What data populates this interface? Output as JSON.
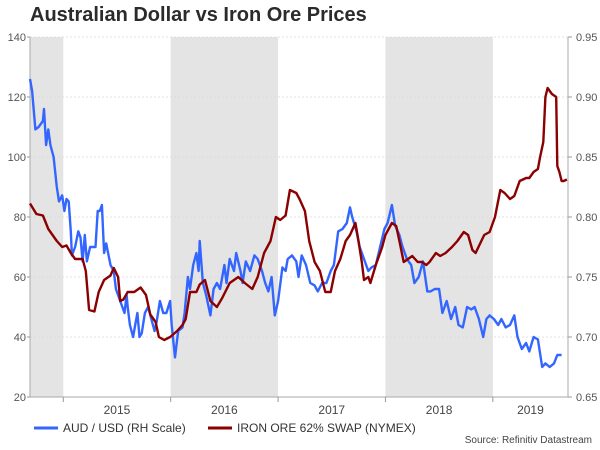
{
  "chart_data": {
    "type": "line",
    "title": "Australian Dollar vs Iron Ore Prices",
    "source": "Source: Refinitiv Datastream",
    "x_range": [
      2014.69,
      2019.7
    ],
    "x_ticks": [
      "2015",
      "2016",
      "2017",
      "2018",
      "2019"
    ],
    "shaded_years": [
      "2014",
      "2016",
      "2018"
    ],
    "left_axis": {
      "range": [
        20,
        140
      ],
      "ticks": [
        "20",
        "40",
        "60",
        "80",
        "100",
        "120",
        "140"
      ]
    },
    "right_axis": {
      "range": [
        0.65,
        0.95
      ],
      "ticks": [
        "0.65",
        "0.70",
        "0.75",
        "0.80",
        "0.85",
        "0.90",
        "0.95"
      ]
    },
    "grid": true,
    "legend_position": "bottom",
    "series": [
      {
        "name": "AUD / USD (RH Scale)",
        "axis": "right",
        "color": "#3366ff",
        "points": [
          [
            2014.69,
            0.915
          ],
          [
            2014.71,
            0.905
          ],
          [
            2014.74,
            0.873
          ],
          [
            2014.77,
            0.875
          ],
          [
            2014.81,
            0.88
          ],
          [
            2014.82,
            0.89
          ],
          [
            2014.84,
            0.86
          ],
          [
            2014.86,
            0.873
          ],
          [
            2014.88,
            0.86
          ],
          [
            2014.91,
            0.85
          ],
          [
            2014.94,
            0.825
          ],
          [
            2014.96,
            0.813
          ],
          [
            2014.99,
            0.818
          ],
          [
            2015.01,
            0.805
          ],
          [
            2015.03,
            0.815
          ],
          [
            2015.05,
            0.813
          ],
          [
            2015.07,
            0.788
          ],
          [
            2015.08,
            0.768
          ],
          [
            2015.11,
            0.775
          ],
          [
            2015.14,
            0.788
          ],
          [
            2015.16,
            0.783
          ],
          [
            2015.18,
            0.763
          ],
          [
            2015.2,
            0.785
          ],
          [
            2015.22,
            0.763
          ],
          [
            2015.25,
            0.775
          ],
          [
            2015.3,
            0.775
          ],
          [
            2015.32,
            0.805
          ],
          [
            2015.34,
            0.805
          ],
          [
            2015.36,
            0.81
          ],
          [
            2015.38,
            0.77
          ],
          [
            2015.4,
            0.778
          ],
          [
            2015.44,
            0.76
          ],
          [
            2015.47,
            0.755
          ],
          [
            2015.49,
            0.74
          ],
          [
            2015.53,
            0.73
          ],
          [
            2015.57,
            0.72
          ],
          [
            2015.59,
            0.735
          ],
          [
            2015.6,
            0.725
          ],
          [
            2015.62,
            0.71
          ],
          [
            2015.65,
            0.7
          ],
          [
            2015.67,
            0.71
          ],
          [
            2015.69,
            0.72
          ],
          [
            2015.71,
            0.7
          ],
          [
            2015.73,
            0.703
          ],
          [
            2015.76,
            0.72
          ],
          [
            2015.79,
            0.725
          ],
          [
            2015.82,
            0.715
          ],
          [
            2015.85,
            0.705
          ],
          [
            2015.87,
            0.713
          ],
          [
            2015.9,
            0.73
          ],
          [
            2015.93,
            0.72
          ],
          [
            2015.96,
            0.72
          ],
          [
            2015.995,
            0.73
          ],
          [
            2016.01,
            0.71
          ],
          [
            2016.04,
            0.683
          ],
          [
            2016.07,
            0.705
          ],
          [
            2016.11,
            0.708
          ],
          [
            2016.13,
            0.72
          ],
          [
            2016.16,
            0.75
          ],
          [
            2016.18,
            0.74
          ],
          [
            2016.21,
            0.76
          ],
          [
            2016.24,
            0.77
          ],
          [
            2016.26,
            0.755
          ],
          [
            2016.27,
            0.78
          ],
          [
            2016.3,
            0.745
          ],
          [
            2016.33,
            0.735
          ],
          [
            2016.37,
            0.718
          ],
          [
            2016.4,
            0.74
          ],
          [
            2016.43,
            0.745
          ],
          [
            2016.46,
            0.74
          ],
          [
            2016.5,
            0.76
          ],
          [
            2016.52,
            0.745
          ],
          [
            2016.55,
            0.765
          ],
          [
            2016.59,
            0.755
          ],
          [
            2016.61,
            0.77
          ],
          [
            2016.65,
            0.755
          ],
          [
            2016.67,
            0.745
          ],
          [
            2016.7,
            0.763
          ],
          [
            2016.74,
            0.755
          ],
          [
            2016.78,
            0.768
          ],
          [
            2016.81,
            0.765
          ],
          [
            2016.85,
            0.755
          ],
          [
            2016.88,
            0.745
          ],
          [
            2016.91,
            0.738
          ],
          [
            2016.94,
            0.75
          ],
          [
            2016.97,
            0.718
          ],
          [
            2017.0,
            0.73
          ],
          [
            2017.04,
            0.758
          ],
          [
            2017.07,
            0.755
          ],
          [
            2017.09,
            0.765
          ],
          [
            2017.13,
            0.768
          ],
          [
            2017.17,
            0.763
          ],
          [
            2017.19,
            0.75
          ],
          [
            2017.22,
            0.768
          ],
          [
            2017.26,
            0.76
          ],
          [
            2017.3,
            0.745
          ],
          [
            2017.34,
            0.743
          ],
          [
            2017.37,
            0.738
          ],
          [
            2017.41,
            0.745
          ],
          [
            2017.45,
            0.745
          ],
          [
            2017.49,
            0.755
          ],
          [
            2017.52,
            0.76
          ],
          [
            2017.56,
            0.788
          ],
          [
            2017.6,
            0.79
          ],
          [
            2017.64,
            0.795
          ],
          [
            2017.67,
            0.808
          ],
          [
            2017.69,
            0.8
          ],
          [
            2017.73,
            0.788
          ],
          [
            2017.76,
            0.775
          ],
          [
            2017.8,
            0.765
          ],
          [
            2017.84,
            0.755
          ],
          [
            2017.87,
            0.758
          ],
          [
            2017.91,
            0.76
          ],
          [
            2017.95,
            0.775
          ],
          [
            2017.99,
            0.79
          ],
          [
            2018.02,
            0.795
          ],
          [
            2018.06,
            0.81
          ],
          [
            2018.09,
            0.793
          ],
          [
            2018.13,
            0.785
          ],
          [
            2018.16,
            0.775
          ],
          [
            2018.2,
            0.765
          ],
          [
            2018.24,
            0.76
          ],
          [
            2018.27,
            0.745
          ],
          [
            2018.31,
            0.75
          ],
          [
            2018.35,
            0.763
          ],
          [
            2018.39,
            0.738
          ],
          [
            2018.42,
            0.738
          ],
          [
            2018.46,
            0.74
          ],
          [
            2018.5,
            0.74
          ],
          [
            2018.53,
            0.72
          ],
          [
            2018.57,
            0.73
          ],
          [
            2018.61,
            0.715
          ],
          [
            2018.65,
            0.725
          ],
          [
            2018.68,
            0.71
          ],
          [
            2018.72,
            0.708
          ],
          [
            2018.76,
            0.725
          ],
          [
            2018.8,
            0.723
          ],
          [
            2018.83,
            0.725
          ],
          [
            2018.87,
            0.715
          ],
          [
            2018.91,
            0.7
          ],
          [
            2018.94,
            0.715
          ],
          [
            2018.97,
            0.718
          ],
          [
            2019.01,
            0.715
          ],
          [
            2019.05,
            0.71
          ],
          [
            2019.08,
            0.715
          ],
          [
            2019.12,
            0.708
          ],
          [
            2019.16,
            0.71
          ],
          [
            2019.2,
            0.718
          ],
          [
            2019.23,
            0.7
          ],
          [
            2019.27,
            0.69
          ],
          [
            2019.31,
            0.695
          ],
          [
            2019.34,
            0.688
          ],
          [
            2019.38,
            0.7
          ],
          [
            2019.42,
            0.698
          ],
          [
            2019.46,
            0.675
          ],
          [
            2019.49,
            0.678
          ],
          [
            2019.53,
            0.675
          ],
          [
            2019.57,
            0.678
          ],
          [
            2019.6,
            0.685
          ],
          [
            2019.64,
            0.685
          ]
        ]
      },
      {
        "name": "IRON ORE 62% SWAP (NYMEX)",
        "axis": "left",
        "color": "#8b0000",
        "points": [
          [
            2014.69,
            84.5
          ],
          [
            2014.75,
            81
          ],
          [
            2014.81,
            80.5
          ],
          [
            2014.86,
            76
          ],
          [
            2014.94,
            72
          ],
          [
            2014.99,
            70
          ],
          [
            2015.03,
            70.5
          ],
          [
            2015.07,
            68
          ],
          [
            2015.11,
            66
          ],
          [
            2015.18,
            66
          ],
          [
            2015.21,
            62
          ],
          [
            2015.24,
            49
          ],
          [
            2015.29,
            48.5
          ],
          [
            2015.33,
            55
          ],
          [
            2015.38,
            59
          ],
          [
            2015.44,
            60.5
          ],
          [
            2015.47,
            63
          ],
          [
            2015.51,
            60
          ],
          [
            2015.53,
            52
          ],
          [
            2015.56,
            52.5
          ],
          [
            2015.6,
            55
          ],
          [
            2015.66,
            55
          ],
          [
            2015.72,
            56.5
          ],
          [
            2015.77,
            54
          ],
          [
            2015.81,
            47.5
          ],
          [
            2015.86,
            45
          ],
          [
            2015.89,
            40
          ],
          [
            2015.94,
            39
          ],
          [
            2015.995,
            40
          ],
          [
            2016.06,
            42
          ],
          [
            2016.11,
            44
          ],
          [
            2016.14,
            46
          ],
          [
            2016.18,
            55
          ],
          [
            2016.24,
            55
          ],
          [
            2016.27,
            57.5
          ],
          [
            2016.32,
            59
          ],
          [
            2016.37,
            52
          ],
          [
            2016.43,
            50
          ],
          [
            2016.48,
            53
          ],
          [
            2016.55,
            58
          ],
          [
            2016.63,
            60
          ],
          [
            2016.69,
            58
          ],
          [
            2016.76,
            56
          ],
          [
            2016.81,
            60
          ],
          [
            2016.87,
            68
          ],
          [
            2016.93,
            72
          ],
          [
            2016.98,
            80
          ],
          [
            2017.02,
            79
          ],
          [
            2017.07,
            80.5
          ],
          [
            2017.11,
            89
          ],
          [
            2017.17,
            88
          ],
          [
            2017.2,
            86
          ],
          [
            2017.25,
            82
          ],
          [
            2017.29,
            72
          ],
          [
            2017.34,
            65
          ],
          [
            2017.39,
            62
          ],
          [
            2017.44,
            55
          ],
          [
            2017.49,
            55
          ],
          [
            2017.53,
            62
          ],
          [
            2017.58,
            66
          ],
          [
            2017.63,
            72
          ],
          [
            2017.67,
            74
          ],
          [
            2017.72,
            78
          ],
          [
            2017.74,
            74
          ],
          [
            2017.78,
            65
          ],
          [
            2017.8,
            59
          ],
          [
            2017.84,
            60
          ],
          [
            2017.86,
            58
          ],
          [
            2017.91,
            64
          ],
          [
            2017.97,
            70
          ],
          [
            2018.0,
            74
          ],
          [
            2018.06,
            78
          ],
          [
            2018.1,
            77
          ],
          [
            2018.13,
            72
          ],
          [
            2018.17,
            65
          ],
          [
            2018.21,
            66
          ],
          [
            2018.25,
            67
          ],
          [
            2018.3,
            65
          ],
          [
            2018.34,
            65
          ],
          [
            2018.38,
            64
          ],
          [
            2018.41,
            65
          ],
          [
            2018.47,
            68
          ],
          [
            2018.51,
            67
          ],
          [
            2018.56,
            68
          ],
          [
            2018.62,
            70
          ],
          [
            2018.67,
            72
          ],
          [
            2018.73,
            75
          ],
          [
            2018.77,
            74
          ],
          [
            2018.81,
            69
          ],
          [
            2018.84,
            68
          ],
          [
            2018.88,
            71
          ],
          [
            2018.92,
            74
          ],
          [
            2018.97,
            75
          ],
          [
            2019.02,
            80
          ],
          [
            2019.07,
            89
          ],
          [
            2019.11,
            88
          ],
          [
            2019.16,
            86
          ],
          [
            2019.2,
            87
          ],
          [
            2019.25,
            92
          ],
          [
            2019.31,
            93
          ],
          [
            2019.34,
            93
          ],
          [
            2019.38,
            95
          ],
          [
            2019.42,
            96
          ],
          [
            2019.44,
            100
          ],
          [
            2019.47,
            105
          ],
          [
            2019.49,
            120
          ],
          [
            2019.51,
            123
          ],
          [
            2019.55,
            121
          ],
          [
            2019.59,
            120
          ],
          [
            2019.6,
            97
          ],
          [
            2019.62,
            95
          ],
          [
            2019.64,
            92
          ],
          [
            2019.66,
            92
          ],
          [
            2019.69,
            92.5
          ]
        ]
      }
    ]
  }
}
